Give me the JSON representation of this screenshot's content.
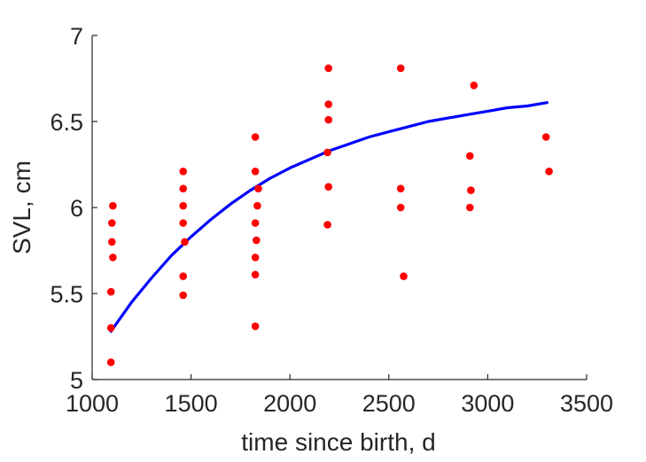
{
  "chart_data": {
    "type": "scatter",
    "title": "",
    "xlabel": "time since birth, d",
    "ylabel": "SVL, cm",
    "xlim": [
      1000,
      3500
    ],
    "ylim": [
      5,
      7
    ],
    "xticks": [
      1000,
      1500,
      2000,
      2500,
      3000,
      3500
    ],
    "yticks": [
      5,
      5.5,
      6,
      6.5,
      7
    ],
    "xtick_labels": [
      "1000",
      "1500",
      "2000",
      "2500",
      "3000",
      "3500"
    ],
    "ytick_labels": [
      "5",
      "5.5",
      "6",
      "6.5",
      "7"
    ],
    "grid": false,
    "legend": "none",
    "series": [
      {
        "type": "scatter",
        "color": "#ff0000",
        "points": [
          [
            1095,
            5.1
          ],
          [
            1095,
            5.3
          ],
          [
            1095,
            5.51
          ],
          [
            1105,
            5.71
          ],
          [
            1100,
            5.8
          ],
          [
            1100,
            5.91
          ],
          [
            1105,
            6.01
          ],
          [
            1460,
            5.49
          ],
          [
            1460,
            5.6
          ],
          [
            1468,
            5.8
          ],
          [
            1460,
            5.91
          ],
          [
            1460,
            6.01
          ],
          [
            1460,
            6.11
          ],
          [
            1460,
            6.21
          ],
          [
            1825,
            5.31
          ],
          [
            1825,
            5.61
          ],
          [
            1825,
            5.71
          ],
          [
            1830,
            5.81
          ],
          [
            1825,
            5.91
          ],
          [
            1835,
            6.01
          ],
          [
            1840,
            6.11
          ],
          [
            1825,
            6.21
          ],
          [
            1825,
            6.41
          ],
          [
            2190,
            5.9
          ],
          [
            2195,
            6.12
          ],
          [
            2190,
            6.32
          ],
          [
            2195,
            6.51
          ],
          [
            2195,
            6.6
          ],
          [
            2195,
            6.81
          ],
          [
            2575,
            5.6
          ],
          [
            2560,
            6.0
          ],
          [
            2560,
            6.11
          ],
          [
            2560,
            6.81
          ],
          [
            2910,
            6.0
          ],
          [
            2915,
            6.1
          ],
          [
            2910,
            6.3
          ],
          [
            2930,
            6.71
          ],
          [
            3295,
            6.41
          ],
          [
            3310,
            6.21
          ]
        ]
      },
      {
        "type": "line",
        "color": "#0000ff",
        "points": [
          [
            1095,
            5.28
          ],
          [
            1200,
            5.45
          ],
          [
            1300,
            5.59
          ],
          [
            1400,
            5.72
          ],
          [
            1500,
            5.83
          ],
          [
            1600,
            5.93
          ],
          [
            1700,
            6.02
          ],
          [
            1800,
            6.1
          ],
          [
            1900,
            6.17
          ],
          [
            2000,
            6.23
          ],
          [
            2100,
            6.28
          ],
          [
            2200,
            6.33
          ],
          [
            2300,
            6.37
          ],
          [
            2400,
            6.41
          ],
          [
            2500,
            6.44
          ],
          [
            2600,
            6.47
          ],
          [
            2700,
            6.5
          ],
          [
            2800,
            6.52
          ],
          [
            2900,
            6.54
          ],
          [
            3000,
            6.56
          ],
          [
            3100,
            6.58
          ],
          [
            3200,
            6.59
          ],
          [
            3300,
            6.61
          ]
        ]
      }
    ]
  }
}
